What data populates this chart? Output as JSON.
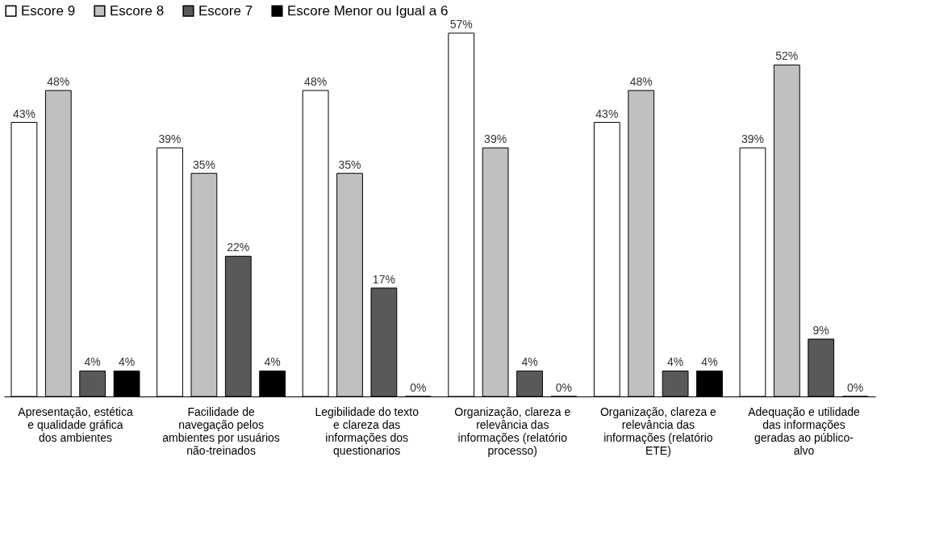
{
  "chart_data": {
    "type": "bar",
    "categories": [
      "Apresentação, estética e qualidade gráfica dos ambientes",
      "Facilidade de navegação pelos ambientes por usuários não-treinados",
      "Legibilidade do texto e clareza das informações dos questionarios",
      "Organização, clareza e relevância das informações (relatório processo)",
      "Organização, clareza e relevância das informações (relatório ETE)",
      "Adequação e utilidade das informações geradas ao público-alvo"
    ],
    "series": [
      {
        "name": "Escore 9",
        "color": "#ffffff",
        "values": [
          43,
          39,
          48,
          57,
          43,
          39
        ],
        "value_labels": [
          "43%",
          "39%",
          "48%",
          "57%",
          "43%",
          "39%"
        ]
      },
      {
        "name": "Escore 8",
        "color": "#c0c0c0",
        "values": [
          48,
          35,
          35,
          39,
          48,
          52
        ],
        "value_labels": [
          "48%",
          "35%",
          "35%",
          "39%",
          "48%",
          "52%"
        ]
      },
      {
        "name": "Escore 7",
        "color": "#595959",
        "values": [
          4,
          22,
          17,
          4,
          4,
          9
        ],
        "value_labels": [
          "4%",
          "22%",
          "17%",
          "4%",
          "4%",
          "9%"
        ]
      },
      {
        "name": "Escore Menor ou Igual a 6",
        "color": "#000000",
        "values": [
          4,
          4,
          0,
          0,
          4,
          0
        ],
        "value_labels": [
          "4%",
          "4%",
          "0%",
          "0%",
          "4%",
          "0%"
        ]
      }
    ],
    "legend": "top",
    "grid": false
  }
}
